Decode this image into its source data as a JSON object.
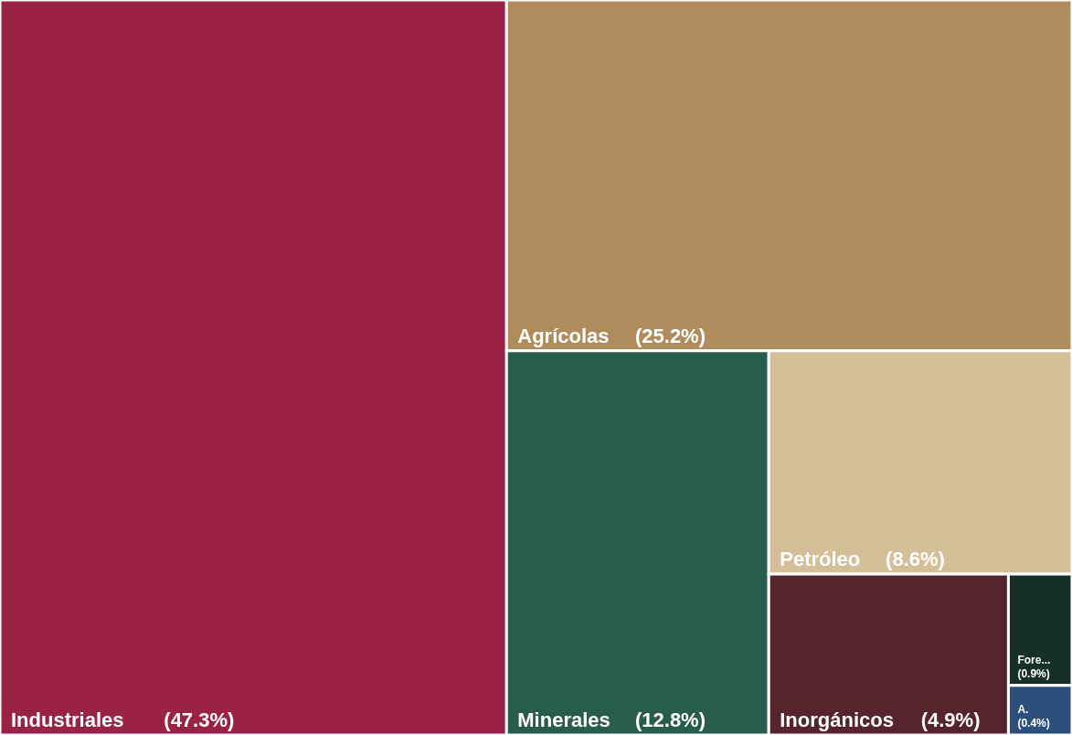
{
  "chart_data": {
    "type": "other",
    "categories": [
      "Industriales",
      "Agrícolas",
      "Minerales",
      "Petróleo",
      "Inorgánicos",
      "Fore...",
      "A."
    ],
    "values": [
      47.3,
      25.2,
      12.8,
      8.6,
      4.9,
      0.9,
      0.4
    ],
    "value_labels": [
      "(47.3%)",
      "(25.2%)",
      "(12.8%)",
      "(8.6%)",
      "(4.9%)",
      "(0.9%)",
      "(0.4%)"
    ],
    "colors": [
      "#9b2247",
      "#b08c5c",
      "#285c4d",
      "#d5bf98",
      "#56242c",
      "#163029",
      "#2c4f7c"
    ]
  }
}
